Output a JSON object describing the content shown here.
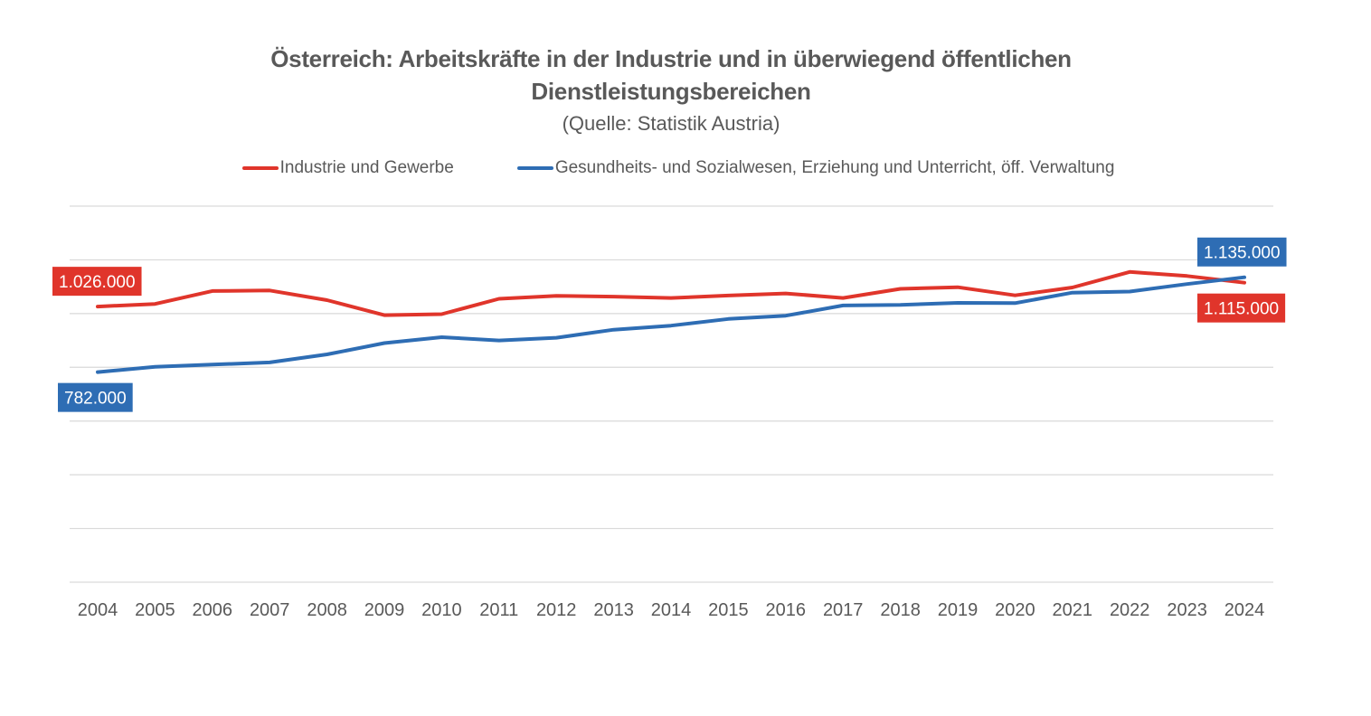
{
  "chart_data": {
    "type": "line",
    "title_line1": "Österreich: Arbeitskräfte in der Industrie und in überwiegend öffentlichen",
    "title_line2": "Dienstleistungsbereichen",
    "subtitle": "(Quelle: Statistik Austria)",
    "x": [
      "2004",
      "2005",
      "2006",
      "2007",
      "2008",
      "2009",
      "2010",
      "2011",
      "2012",
      "2013",
      "2014",
      "2015",
      "2016",
      "2017",
      "2018",
      "2019",
      "2020",
      "2021",
      "2022",
      "2023",
      "2024"
    ],
    "ylim": [
      0,
      1400000
    ],
    "y_ticks": [
      0,
      200000,
      400000,
      600000,
      800000,
      1000000,
      1200000,
      1400000
    ],
    "y_tick_labels_visible": false,
    "grid": true,
    "legend_position": "top",
    "series": [
      {
        "name": "Industrie und Gewerbe",
        "color": "#E0352B",
        "values": [
          1026000,
          1036000,
          1084000,
          1086000,
          1050000,
          994000,
          998000,
          1055000,
          1066000,
          1063000,
          1058000,
          1067000,
          1075000,
          1058000,
          1092000,
          1098000,
          1068000,
          1097000,
          1155000,
          1140000,
          1115000
        ],
        "labels": [
          {
            "index": 0,
            "text": "1.026.000",
            "placement": "upper-left"
          },
          {
            "index": 20,
            "text": "1.115.000",
            "placement": "lower-right"
          }
        ]
      },
      {
        "name": "Gesundheits- und Sozialwesen, Erziehung und Unterricht, öff. Verwaltung",
        "color": "#2E6DB4",
        "values": [
          782000,
          802000,
          810000,
          818000,
          848000,
          890000,
          912000,
          900000,
          910000,
          940000,
          955000,
          980000,
          992000,
          1030000,
          1032000,
          1040000,
          1039000,
          1078000,
          1082000,
          1110000,
          1135000
        ],
        "labels": [
          {
            "index": 0,
            "text": "782.000",
            "placement": "lower-left"
          },
          {
            "index": 20,
            "text": "1.135.000",
            "placement": "upper-right"
          }
        ]
      }
    ]
  }
}
